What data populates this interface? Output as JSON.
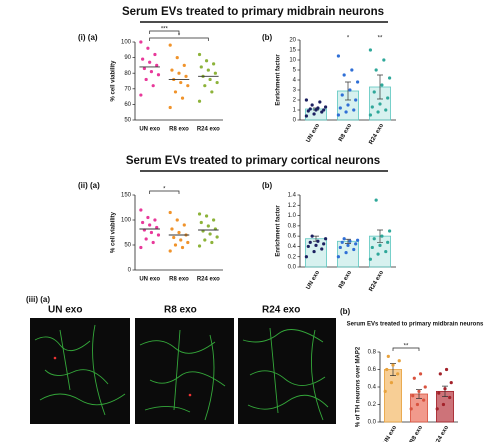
{
  "headings": [
    "Serum EVs treated to primary midbrain neurons",
    "Serum EVs treated to primary cortical neurons"
  ],
  "panel_labels": [
    "(i)  (a)",
    "(b)",
    "(ii)  (a)",
    "(b)",
    "(iii)  (a)",
    "(b)"
  ],
  "images": [
    "UN exo",
    "R8 exo",
    "R24 exo"
  ],
  "chart_data": [
    {
      "type": "strip",
      "ylabel": "% cell viability",
      "categories": [
        "UN exo",
        "R8 exo",
        "R24 exo"
      ],
      "colors": [
        "#e8399a",
        "#f0932b",
        "#8db33a"
      ],
      "points": [
        [
          100,
          96,
          92,
          89,
          87,
          85,
          83,
          81,
          79,
          76,
          72,
          66
        ],
        [
          98,
          90,
          85,
          82,
          80,
          78,
          76,
          74,
          72,
          68,
          64,
          58
        ],
        [
          92,
          88,
          86,
          84,
          82,
          80,
          78,
          76,
          74,
          72,
          68,
          62
        ]
      ],
      "means": [
        84,
        76,
        78
      ],
      "ylim": [
        50,
        100
      ],
      "yticks": [
        50,
        60,
        70,
        80,
        90,
        100
      ],
      "brackets": [
        {
          "from": 0,
          "to": 1,
          "label": "***"
        },
        {
          "from": 0,
          "to": 2,
          "label": "*"
        }
      ]
    },
    {
      "type": "bar_strip",
      "ylabel": "Enrichment factor",
      "categories": [
        "UN exo",
        "R8 exo",
        "R24 exo"
      ],
      "colors": [
        "#1c2060",
        "#2f6fd6",
        "#2fa89a"
      ],
      "bar_color": "#5ec7c0",
      "values": [
        1.1,
        2.9,
        3.3
      ],
      "errors": [
        0.1,
        0.9,
        1.2
      ],
      "points": [
        [
          0.4,
          0.6,
          0.8,
          0.9,
          1.0,
          1.0,
          1.1,
          1.2,
          1.3,
          1.5,
          1.8,
          2.0
        ],
        [
          0.5,
          0.8,
          1.0,
          1.2,
          1.5,
          2.0,
          2.5,
          3.0,
          3.8,
          4.5,
          5,
          12
        ],
        [
          0.5,
          0.8,
          1.0,
          1.3,
          1.6,
          2.2,
          2.8,
          3.5,
          4.2,
          5,
          10,
          15
        ]
      ],
      "ylim": [
        0,
        20
      ],
      "yticks": [
        0,
        1,
        2,
        3,
        4,
        5,
        10,
        15,
        20
      ],
      "annotations": [
        {
          "category": 1,
          "label": "*"
        },
        {
          "category": 2,
          "label": "**"
        }
      ]
    },
    {
      "type": "strip",
      "ylabel": "% cell viability",
      "categories": [
        "UN exo",
        "R8 exo",
        "R24 exo"
      ],
      "colors": [
        "#e8399a",
        "#f0932b",
        "#8db33a"
      ],
      "points": [
        [
          120,
          105,
          100,
          95,
          90,
          85,
          80,
          75,
          70,
          62,
          55,
          45
        ],
        [
          115,
          100,
          90,
          82,
          75,
          70,
          65,
          60,
          55,
          50,
          45,
          38
        ],
        [
          112,
          108,
          100,
          95,
          88,
          82,
          78,
          72,
          66,
          60,
          55,
          48
        ]
      ],
      "means": [
        82,
        70,
        80
      ],
      "ylim": [
        0,
        150
      ],
      "yticks": [
        0,
        50,
        100,
        150
      ],
      "brackets": [
        {
          "from": 0,
          "to": 1,
          "label": "*"
        }
      ]
    },
    {
      "type": "bar_strip",
      "ylabel": "Enrichment factor",
      "categories": [
        "UN exo",
        "R8 exo",
        "R24 exo"
      ],
      "colors": [
        "#1c2060",
        "#2f6fd6",
        "#2fa89a"
      ],
      "bar_color": "#5ec7c0",
      "values": [
        0.55,
        0.5,
        0.6
      ],
      "errors": [
        0.05,
        0.04,
        0.12
      ],
      "points": [
        [
          0.2,
          0.3,
          0.35,
          0.4,
          0.42,
          0.45,
          0.48,
          0.5,
          0.55,
          0.6
        ],
        [
          0.2,
          0.28,
          0.34,
          0.38,
          0.42,
          0.45,
          0.48,
          0.5,
          0.52,
          0.55
        ],
        [
          0.15,
          0.25,
          0.3,
          0.38,
          0.42,
          0.48,
          0.55,
          0.6,
          0.7,
          1.3
        ]
      ],
      "ylim": [
        0,
        1.4
      ],
      "yticks": [
        {
          "value": 0,
          "label": "0.0"
        },
        0.2,
        0.4,
        0.6,
        0.8,
        {
          "value": 1,
          "label": "1.0"
        },
        1.2,
        1.4
      ]
    },
    {
      "type": "bar_strip",
      "title": "Serum EVs treated to primary midbrain neurons",
      "ylabel": "% of TH neurons over MAP2",
      "categories": [
        "UN exo",
        "R8 exo",
        "R24 exo"
      ],
      "colors": [
        "#e8a23c",
        "#d9533f",
        "#a3222a"
      ],
      "bar_colors": [
        "#f6c98a",
        "#f08f80",
        "#c8646a"
      ],
      "values": [
        0.6,
        0.32,
        0.35
      ],
      "errors": [
        0.07,
        0.05,
        0.06
      ],
      "points": [
        [
          0.35,
          0.45,
          0.55,
          0.6,
          0.65,
          0.7,
          0.75
        ],
        [
          0.15,
          0.2,
          0.25,
          0.3,
          0.35,
          0.4,
          0.5,
          0.55
        ],
        [
          0.15,
          0.2,
          0.28,
          0.33,
          0.38,
          0.45,
          0.55,
          0.6
        ]
      ],
      "ylim": [
        0,
        0.8
      ],
      "yticks": [
        {
          "value": 0,
          "label": "0.0"
        },
        0.2,
        0.4,
        0.6,
        0.8
      ],
      "brackets": [
        {
          "from": 0,
          "to": 1,
          "label": "**"
        }
      ]
    }
  ]
}
